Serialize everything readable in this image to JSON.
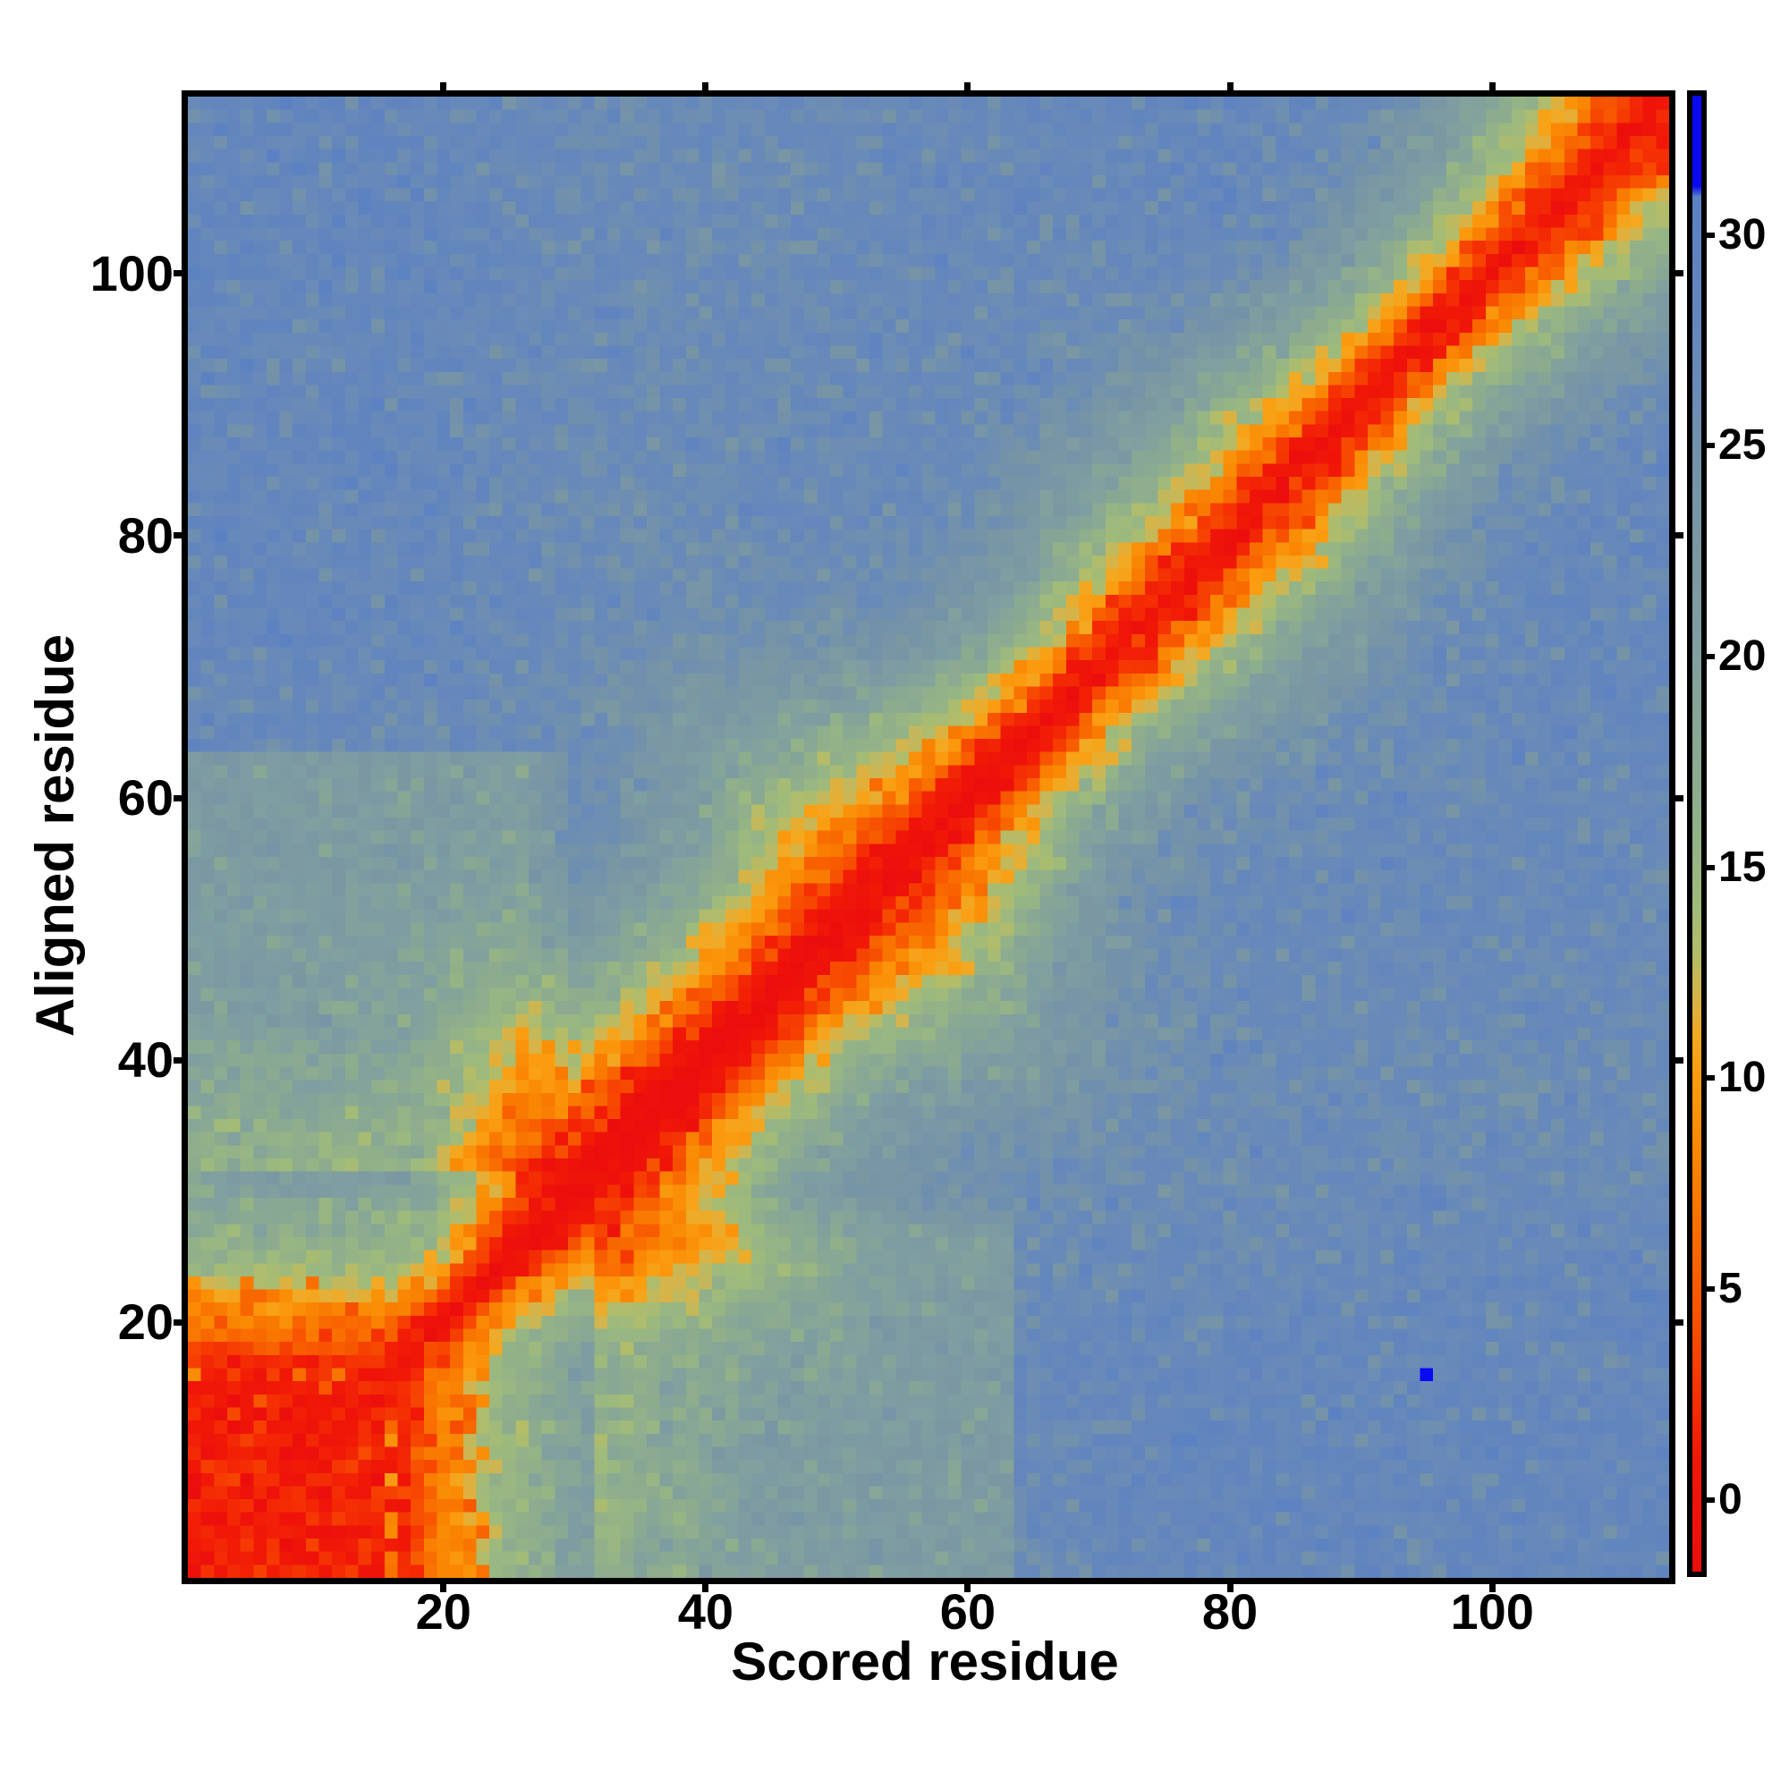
{
  "chart_data": {
    "type": "heatmap",
    "title": "",
    "xlabel": "Scored residue",
    "ylabel": "Aligned residue",
    "n_residues": 113,
    "x_ticks": [
      20,
      40,
      60,
      80,
      100
    ],
    "y_ticks": [
      20,
      40,
      60,
      80,
      100
    ],
    "axis_ranges": {
      "x": [
        1,
        113
      ],
      "y": [
        1,
        113
      ]
    },
    "grid": false,
    "legend_position": "right-colorbar",
    "colorbar": {
      "ticks": [
        0,
        5,
        10,
        15,
        20,
        25,
        30
      ],
      "vmin": -1.7,
      "vmax": 33.3,
      "max_color_threshold": 31.0,
      "max_color": "#0a0af2",
      "min_color": "#ec0d0d"
    },
    "colormap_stops": [
      [
        -1.8,
        "#ec0d0d"
      ],
      [
        1.0,
        "#f11807"
      ],
      [
        2.5,
        "#f53103"
      ],
      [
        4.0,
        "#f74d01"
      ],
      [
        5.5,
        "#f86100"
      ],
      [
        7.0,
        "#f97701"
      ],
      [
        8.5,
        "#fa8a04"
      ],
      [
        10.0,
        "#fb9c10"
      ],
      [
        11.0,
        "#f2a922"
      ],
      [
        12.0,
        "#d4b44c"
      ],
      [
        13.0,
        "#b2bc69"
      ],
      [
        14.0,
        "#a1bb78"
      ],
      [
        15.0,
        "#97b684"
      ],
      [
        16.5,
        "#8fae8c"
      ],
      [
        18.5,
        "#87a696"
      ],
      [
        20.5,
        "#7f9ea1"
      ],
      [
        22.5,
        "#7b98a2"
      ],
      [
        24.5,
        "#7493a8"
      ],
      [
        26.5,
        "#6a8bb7"
      ],
      [
        28.5,
        "#6285bd"
      ],
      [
        30.9,
        "#5b81c3"
      ],
      [
        31.15,
        "#0a0af2"
      ],
      [
        33.3,
        "#0a0af2"
      ]
    ],
    "matrix_model": {
      "description": "Predicted-aligned-error style matrix: low (red) diagonal band widening/narrowing along the chain, red N-terminal domain block (residues 1-22), red C-terminal corner block (108-113), greener low-error patch between N-terminus and residues 32-64, speckled steel-blue high-error background (~28), single max-error blue cell.",
      "background_plateau": 28.3,
      "radial_profile": [
        [
          0,
          0.4
        ],
        [
          1,
          1.9
        ],
        [
          2,
          3.4
        ],
        [
          3,
          5.8
        ],
        [
          4,
          8.4
        ],
        [
          5,
          10.7
        ],
        [
          6,
          12.7
        ],
        [
          7,
          14.2
        ],
        [
          8,
          15.6
        ],
        [
          10,
          18.2
        ],
        [
          12,
          20.6
        ],
        [
          14,
          22.6
        ],
        [
          17,
          24.8
        ],
        [
          20,
          26.2
        ],
        [
          24,
          27.4
        ],
        [
          30,
          28.1
        ],
        [
          60,
          28.3
        ]
      ],
      "band_width_profile": [
        [
          1,
          1.1
        ],
        [
          18,
          1.05
        ],
        [
          22,
          0.8
        ],
        [
          27,
          1.1
        ],
        [
          33,
          1.4
        ],
        [
          40,
          1.15
        ],
        [
          46,
          1.1
        ],
        [
          52,
          1.55
        ],
        [
          58,
          1.3
        ],
        [
          63,
          1.0
        ],
        [
          68,
          0.92
        ],
        [
          76,
          1.12
        ],
        [
          84,
          1.15
        ],
        [
          93,
          0.9
        ],
        [
          100,
          1.0
        ],
        [
          106,
          1.2
        ],
        [
          113,
          1.45
        ]
      ],
      "streak_lightness_profile": [
        [
          1,
          0.2
        ],
        [
          20,
          0.3
        ],
        [
          28,
          1.2
        ],
        [
          38,
          1.7
        ],
        [
          48,
          1.2
        ],
        [
          56,
          0.9
        ],
        [
          64,
          0.8
        ],
        [
          72,
          0.4
        ],
        [
          90,
          0.25
        ],
        [
          113,
          0.2
        ]
      ],
      "nterm_domain_block": {
        "core_extent": 16,
        "core_value": 2.2,
        "fringe_extent": 22,
        "fringe_value": 8.6,
        "halo_min_side": 21,
        "halo_max_limit": 42,
        "halo_slope": 0.85
      },
      "cterm_corner_block": {
        "start": 108,
        "value": 3.0
      },
      "mid_light_patch": {
        "min_side_below": 30,
        "max_side_range": [
          32,
          64
        ],
        "delta": -5.5
      },
      "outlier_cell": {
        "scored": 95,
        "aligned": 16,
        "value": 33.0
      },
      "noise": {
        "seed": 7,
        "amplitude": 2.6,
        "edge_raggedness": 1.8,
        "light_speckle_prob": 0.15,
        "light_speckle_delta": -2.2,
        "dark_speckle_prob": 0.06,
        "dark_speckle_delta": 1.6
      }
    }
  }
}
